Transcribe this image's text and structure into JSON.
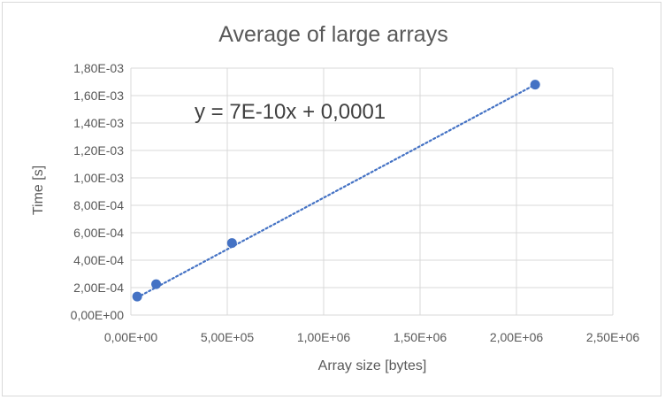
{
  "chart_data": {
    "type": "scatter",
    "title": "Average of  large arrays",
    "xlabel": "Array size [bytes]",
    "ylabel": "Time [s]",
    "xlim": [
      0,
      2500000
    ],
    "ylim": [
      0,
      0.0018
    ],
    "x_ticks": [
      0,
      500000,
      1000000,
      1500000,
      2000000,
      2500000
    ],
    "x_tick_labels": [
      "0,00E+00",
      "5,00E+05",
      "1,00E+06",
      "1,50E+06",
      "2,00E+06",
      "2,50E+06"
    ],
    "y_ticks": [
      0,
      0.0002,
      0.0004,
      0.0006,
      0.0008,
      0.001,
      0.0012,
      0.0014,
      0.0016,
      0.0018
    ],
    "y_tick_labels": [
      "0,00E+00",
      "2,00E-04",
      "4,00E-04",
      "6,00E-04",
      "8,00E-04",
      "1,00E-03",
      "1,20E-03",
      "1,40E-03",
      "1,60E-03",
      "1,80E-03"
    ],
    "grid": true,
    "series": [
      {
        "x": [
          32768,
          131072,
          524288,
          2097152
        ],
        "y": [
          0.000135,
          0.000225,
          0.000525,
          0.00168
        ],
        "color": "#4472c4"
      }
    ],
    "trendline": {
      "type": "linear",
      "style": "dotted",
      "color": "#4472c4",
      "x_range": [
        32768,
        2097152
      ],
      "y_range": [
        0.000128,
        0.00168
      ],
      "equation": "y = 7E-10x + 0,0001"
    }
  },
  "colors": {
    "marker": "#4472c4",
    "grid": "#d9d9d9",
    "text": "#595959"
  }
}
